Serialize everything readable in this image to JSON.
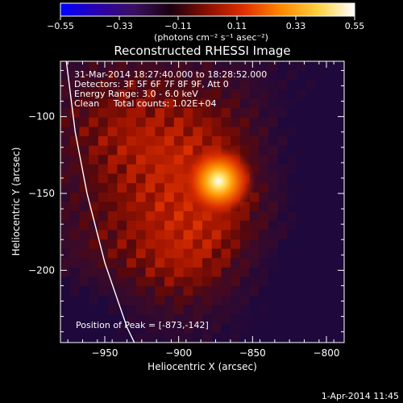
{
  "chart_data": {
    "type": "heatmap",
    "title": "Reconstructed RHESSI Image",
    "xlabel": "Heliocentric X (arcsec)",
    "ylabel": "Heliocentric Y (arcsec)",
    "xlim": [
      -980,
      -788
    ],
    "ylim": [
      -247,
      -64
    ],
    "xticks": [
      -950,
      -900,
      -850,
      -800
    ],
    "yticks": [
      -100,
      -150,
      -200
    ],
    "xtick_labels": [
      "−950",
      "−900",
      "−850",
      "−800"
    ],
    "ytick_labels": [
      "−100",
      "−150",
      "−200"
    ],
    "colorbar": {
      "min": -0.55,
      "max": 0.55,
      "tick_values": [
        -0.55,
        -0.33,
        -0.11,
        0.11,
        0.33,
        0.55
      ],
      "tick_labels": [
        "−0.55",
        "−0.33",
        "−0.11",
        "0.11",
        "0.33",
        "0.55"
      ],
      "units": "(photons cm⁻² s⁻¹ asec⁻²)",
      "colors": [
        "#0000ff",
        "#2a00b0",
        "#3a1060",
        "#1a0010",
        "#8a1000",
        "#e03000",
        "#ff8800",
        "#ffd040",
        "#ffffff"
      ]
    },
    "annotations": [
      "31-Mar-2014 18:27:40.000 to 18:28:52.000",
      "Detectors: 3F 5F 6F 7F 8F 9F, Att 0",
      "Energy Range: 3.0 - 6.0 keV",
      "Clean     Total counts: 1.02E+04"
    ],
    "peak": {
      "x": -873,
      "y": -142,
      "label": "Position of Peak = [-873,-142]"
    },
    "limb": [
      {
        "x": -976,
        "y": -64
      },
      {
        "x": -970,
        "y": -110
      },
      {
        "x": -962,
        "y": -150
      },
      {
        "x": -950,
        "y": -195
      },
      {
        "x": -935,
        "y": -237
      },
      {
        "x": -930,
        "y": -247
      }
    ],
    "footer": "1-Apr-2014 11:45"
  }
}
